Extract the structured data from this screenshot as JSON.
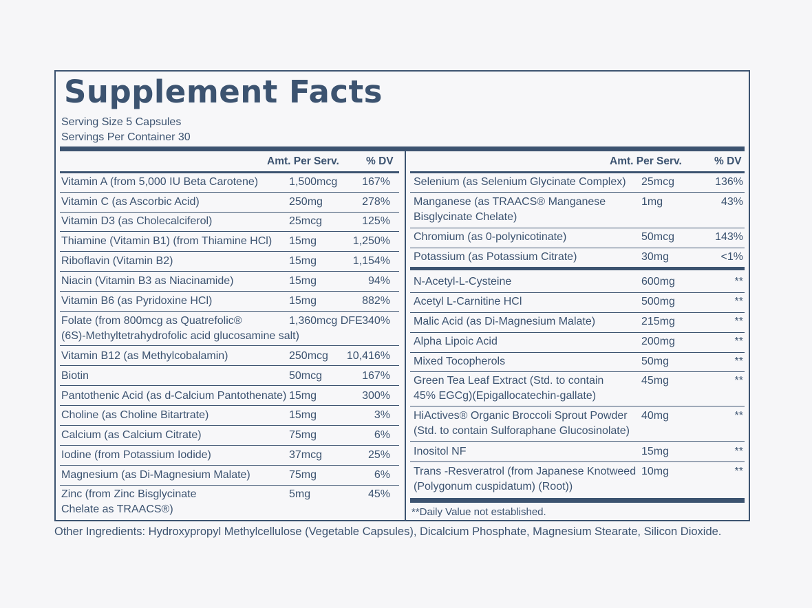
{
  "title": "Supplement Facts",
  "serving_size": "Serving Size 5 Capsules",
  "servings_per_container": "Servings Per Container 30",
  "left_header": {
    "amount": "Amt. Per Serv.",
    "dv": "% DV"
  },
  "right_header": {
    "amount": "Amt. Per Serv.",
    "dv": "% DV"
  },
  "left_rows": [
    {
      "name": [
        "Vitamin A (from 5,000 IU Beta Carotene)"
      ],
      "amount": "1,500mcg",
      "dv": "167%"
    },
    {
      "name": [
        "Vitamin C (as Ascorbic Acid)"
      ],
      "amount": "250mg",
      "dv": "278%"
    },
    {
      "name": [
        "Vitamin D3 (as Cholecalciferol)"
      ],
      "amount": "25mcg",
      "dv": "125%"
    },
    {
      "name": [
        "Thiamine (Vitamin B1) (from Thiamine HCl)"
      ],
      "amount": "15mg",
      "dv": "1,250%"
    },
    {
      "name": [
        "Riboflavin (Vitamin B2)"
      ],
      "amount": "15mg",
      "dv": "1,154%"
    },
    {
      "name": [
        "Niacin (Vitamin B3 as Niacinamide)"
      ],
      "amount": "15mg",
      "dv": "94%"
    },
    {
      "name": [
        "Vitamin B6 (as Pyridoxine HCl)"
      ],
      "amount": "15mg",
      "dv": "882%"
    },
    {
      "name": [
        "Folate (from 800mcg as Quatrefolic®",
        "(6S)-Methyltetrahydrofolic acid glucosamine salt)"
      ],
      "amount": "1,360mcg DFE",
      "dv": "340%"
    },
    {
      "name": [
        "Vitamin B12 (as Methylcobalamin)"
      ],
      "amount": "250mcg",
      "dv": "10,416%"
    },
    {
      "name": [
        "Biotin"
      ],
      "amount": "50mcg",
      "dv": "167%"
    },
    {
      "name": [
        "Pantothenic Acid (as d-Calcium Pantothenate)"
      ],
      "amount": "15mg",
      "dv": "300%"
    },
    {
      "name": [
        "Choline (as Choline Bitartrate)"
      ],
      "amount": "15mg",
      "dv": "3%"
    },
    {
      "name": [
        "Calcium (as Calcium Citrate)"
      ],
      "amount": "75mg",
      "dv": "6%"
    },
    {
      "name": [
        "Iodine (from Potassium Iodide)"
      ],
      "amount": "37mcg",
      "dv": "25%"
    },
    {
      "name": [
        "Magnesium (as Di-Magnesium Malate)"
      ],
      "amount": "75mg",
      "dv": "6%"
    },
    {
      "name": [
        "Zinc (from Zinc Bisglycinate",
        "Chelate as TRAACS®)"
      ],
      "amount": "5mg",
      "dv": "45%"
    }
  ],
  "right_rows": [
    {
      "name": [
        "Selenium (as Selenium Glycinate Complex)"
      ],
      "amount": "25mcg",
      "dv": "136%"
    },
    {
      "name": [
        "Manganese (as TRAACS® Manganese",
        "Bisglycinate Chelate)"
      ],
      "amount": "1mg",
      "dv": "43%"
    },
    {
      "name": [
        "Chromium (as 0-polynicotinate)"
      ],
      "amount": "50mcg",
      "dv": "143%"
    },
    {
      "name": [
        "Potassium (as Potassium Citrate)"
      ],
      "amount": "30mg",
      "dv": "<1%"
    },
    {
      "name": [
        "N-Acetyl-L-Cysteine"
      ],
      "amount": "600mg",
      "dv": "**"
    },
    {
      "name": [
        "Acetyl L-Carnitine HCl"
      ],
      "amount": "500mg",
      "dv": "**"
    },
    {
      "name": [
        "Malic Acid (as Di-Magnesium Malate)"
      ],
      "amount": "215mg",
      "dv": "**"
    },
    {
      "name": [
        "Alpha Lipoic Acid"
      ],
      "amount": "200mg",
      "dv": "**"
    },
    {
      "name": [
        "Mixed Tocopherols"
      ],
      "amount": "50mg",
      "dv": "**"
    },
    {
      "name": [
        "Green Tea Leaf Extract (Std. to contain",
        "45% EGCg)(Epigallocatechin-gallate)"
      ],
      "amount": "45mg",
      "dv": "**"
    },
    {
      "name": [
        "HiActives® Organic Broccoli Sprout Powder",
        "(Std. to contain Sulforaphane Glucosinolate)"
      ],
      "amount": "40mg",
      "dv": "**"
    },
    {
      "name": [
        "Inositol NF"
      ],
      "amount": "15mg",
      "dv": "**"
    },
    {
      "name": [
        "Trans -Resveratrol (from Japanese Knotweed",
        "(Polygonum cuspidatum) (Root))"
      ],
      "amount": "10mg",
      "dv": "**"
    }
  ],
  "daily_value_note": "**Daily Value not established.",
  "other_ingredients": "Other Ingredients: Hydroxypropyl Methylcellulose (Vegetable Capsules), Dicalcium Phosphate, Magnesium Stearate, Silicon Dioxide."
}
